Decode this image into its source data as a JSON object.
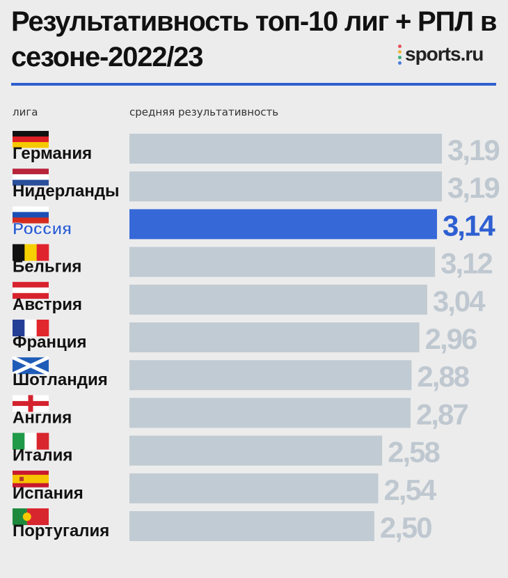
{
  "title": "Результативность топ-10 лиг + РПЛ в сезоне-2022/23",
  "brand": {
    "name": "sports.ru",
    "dot_colors": [
      "#e8505b",
      "#f0b43c",
      "#3fb27f",
      "#4a7ce0"
    ]
  },
  "colors": {
    "bar": "#c1cbd3",
    "highlight_bar": "#3668d8",
    "value_text": "#bfc8d0",
    "highlight_value_text": "#2e5fd2",
    "label_text": "#111111",
    "highlight_label_text": "#2e5fd2",
    "rule": "#2f5fcf",
    "background": "#ececec"
  },
  "chart_data": {
    "type": "bar",
    "orientation": "horizontal",
    "categories": [
      "Германия",
      "Нидерланды",
      "Россия",
      "Бельгия",
      "Австрия",
      "Франция",
      "Шотландия",
      "Англия",
      "Италия",
      "Испания",
      "Португалия"
    ],
    "values": [
      3.19,
      3.19,
      3.14,
      3.12,
      3.04,
      2.96,
      2.88,
      2.87,
      2.58,
      2.54,
      2.5
    ],
    "value_labels": [
      "3,19",
      "3,19",
      "3,14",
      "3,12",
      "3,04",
      "2,96",
      "2,88",
      "2,87",
      "2,58",
      "2,54",
      "2,50"
    ],
    "highlight": "Россия",
    "flag_icons": [
      "germany-flag-icon",
      "netherlands-flag-icon",
      "russia-flag-icon",
      "belgium-flag-icon",
      "austria-flag-icon",
      "france-flag-icon",
      "scotland-flag-icon",
      "england-flag-icon",
      "italy-flag-icon",
      "spain-flag-icon",
      "portugal-flag-icon"
    ],
    "xlabel": "средняя результативность",
    "ylabel": "лига",
    "xlim": [
      0,
      3.19
    ],
    "grid": false,
    "legend": "none"
  }
}
